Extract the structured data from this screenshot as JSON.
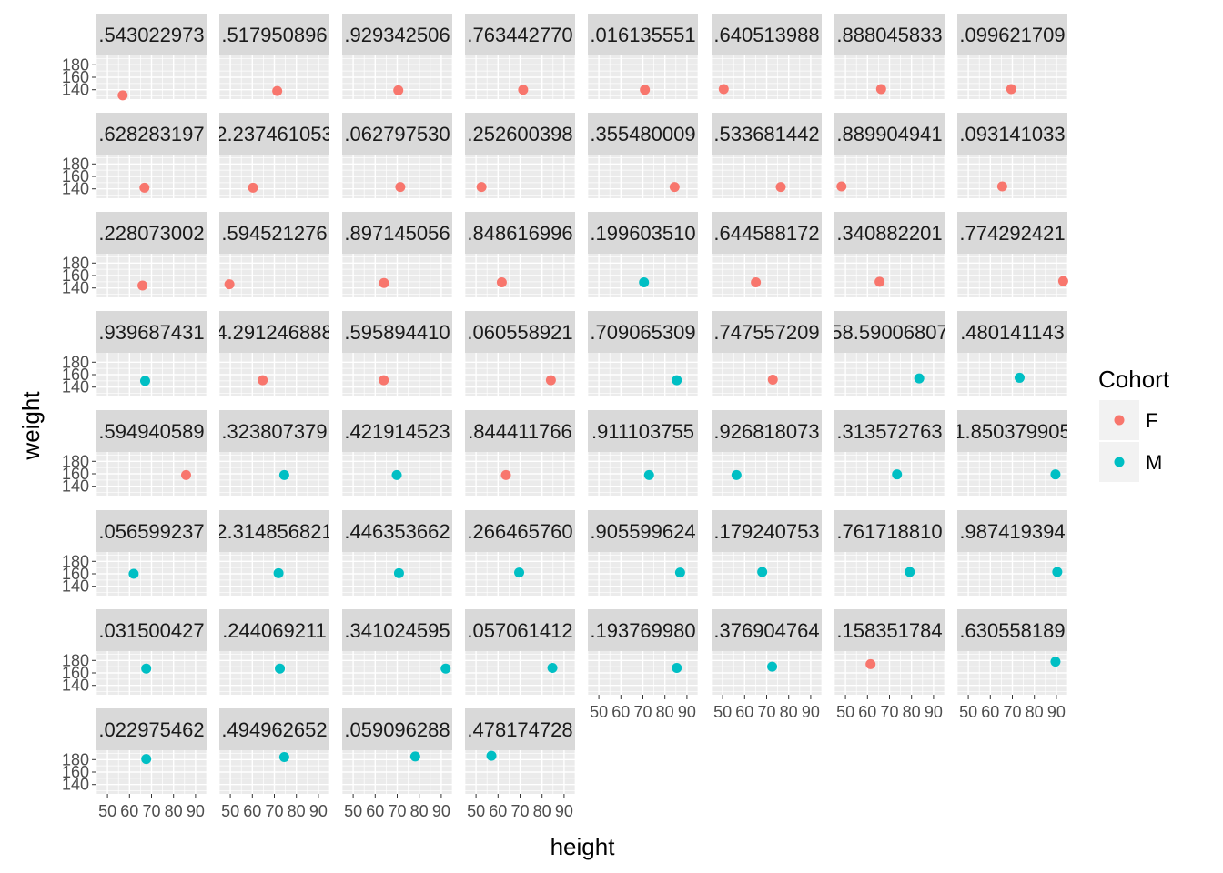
{
  "chart_data": {
    "type": "scatter",
    "x_label": "height",
    "y_label": "weight",
    "xlim": [
      45,
      95
    ],
    "ylim": [
      125,
      195
    ],
    "x_ticks": [
      50,
      60,
      70,
      80,
      90
    ],
    "y_ticks": [
      140,
      160,
      180
    ],
    "grid": true,
    "legend": {
      "title": "Cohort",
      "position": "right",
      "entries": [
        {
          "label": "F",
          "color": "#F8766D"
        },
        {
          "label": "M",
          "color": "#00BFC4"
        }
      ]
    },
    "facets": [
      {
        "label": ".543022973",
        "x": 56.9,
        "y": 131,
        "cohort": "F"
      },
      {
        "label": ".517950896",
        "x": 71.3,
        "y": 138,
        "cohort": "F"
      },
      {
        "label": ".929342506",
        "x": 70.5,
        "y": 139,
        "cohort": "F"
      },
      {
        "label": ".763442770",
        "x": 71.4,
        "y": 140,
        "cohort": "F"
      },
      {
        "label": ".016135551",
        "x": 70.9,
        "y": 140,
        "cohort": "F"
      },
      {
        "label": ".640513988",
        "x": 50.5,
        "y": 141,
        "cohort": "F"
      },
      {
        "label": ".888045833",
        "x": 66.2,
        "y": 141,
        "cohort": "F"
      },
      {
        "label": ".099621709",
        "x": 69.5,
        "y": 141,
        "cohort": "F"
      },
      {
        "label": ".628283197",
        "x": 66.8,
        "y": 142,
        "cohort": "F"
      },
      {
        "label": "2.237461053",
        "x": 60.3,
        "y": 142,
        "cohort": "F"
      },
      {
        "label": ".062797530",
        "x": 71.4,
        "y": 143,
        "cohort": "F"
      },
      {
        "label": ".252600398",
        "x": 52.5,
        "y": 143,
        "cohort": "F"
      },
      {
        "label": ".355480009",
        "x": 84.4,
        "y": 143,
        "cohort": "F"
      },
      {
        "label": ".533681442",
        "x": 76.4,
        "y": 143,
        "cohort": "F"
      },
      {
        "label": ".889904941",
        "x": 48.2,
        "y": 144,
        "cohort": "F"
      },
      {
        "label": ".093141033",
        "x": 65.4,
        "y": 144,
        "cohort": "F"
      },
      {
        "label": ".228073002",
        "x": 65.9,
        "y": 144,
        "cohort": "F"
      },
      {
        "label": ".594521276",
        "x": 49.6,
        "y": 146,
        "cohort": "F"
      },
      {
        "label": ".897145056",
        "x": 64.0,
        "y": 148,
        "cohort": "F"
      },
      {
        "label": ".848616996",
        "x": 61.7,
        "y": 149,
        "cohort": "F"
      },
      {
        "label": ".199603510",
        "x": 70.5,
        "y": 149,
        "cohort": "M"
      },
      {
        "label": ".644588172",
        "x": 65.1,
        "y": 149,
        "cohort": "F"
      },
      {
        "label": ".340882201",
        "x": 65.5,
        "y": 150,
        "cohort": "F"
      },
      {
        "label": ".774292421",
        "x": 93.1,
        "y": 151,
        "cohort": "F"
      },
      {
        "label": ".939687431",
        "x": 67.1,
        "y": 150,
        "cohort": "M"
      },
      {
        "label": "4.291246888",
        "x": 64.7,
        "y": 151,
        "cohort": "F"
      },
      {
        "label": ".595894410",
        "x": 63.9,
        "y": 151,
        "cohort": "F"
      },
      {
        "label": ".060558921",
        "x": 84.0,
        "y": 151,
        "cohort": "F"
      },
      {
        "label": ".709065309",
        "x": 85.4,
        "y": 151,
        "cohort": "M"
      },
      {
        "label": ".747557209",
        "x": 72.8,
        "y": 152,
        "cohort": "F"
      },
      {
        "label": "58.59006807",
        "x": 83.5,
        "y": 154,
        "cohort": "M"
      },
      {
        "label": ".480141143",
        "x": 73.3,
        "y": 155,
        "cohort": "M"
      },
      {
        "label": ".594940589",
        "x": 85.7,
        "y": 158,
        "cohort": "F"
      },
      {
        "label": ".323807379",
        "x": 74.5,
        "y": 158,
        "cohort": "M"
      },
      {
        "label": ".421914523",
        "x": 69.8,
        "y": 158,
        "cohort": "M"
      },
      {
        "label": ".844411766",
        "x": 63.6,
        "y": 158,
        "cohort": "F"
      },
      {
        "label": ".911103755",
        "x": 72.8,
        "y": 158,
        "cohort": "M"
      },
      {
        "label": ".926818073",
        "x": 56.3,
        "y": 158,
        "cohort": "M"
      },
      {
        "label": ".313572763",
        "x": 73.4,
        "y": 159,
        "cohort": "M"
      },
      {
        "label": "1.850379905",
        "x": 89.6,
        "y": 159,
        "cohort": "M"
      },
      {
        "label": ".056599237",
        "x": 61.9,
        "y": 160,
        "cohort": "M"
      },
      {
        "label": "2.314856821",
        "x": 71.9,
        "y": 161,
        "cohort": "M"
      },
      {
        "label": ".446353662",
        "x": 70.8,
        "y": 161,
        "cohort": "M"
      },
      {
        "label": ".266465760",
        "x": 69.6,
        "y": 162,
        "cohort": "M"
      },
      {
        "label": ".905599624",
        "x": 86.9,
        "y": 162,
        "cohort": "M"
      },
      {
        "label": ".179240753",
        "x": 68.0,
        "y": 163,
        "cohort": "M"
      },
      {
        "label": ".761718810",
        "x": 79.2,
        "y": 163,
        "cohort": "M"
      },
      {
        "label": ".987419394",
        "x": 90.4,
        "y": 163,
        "cohort": "M"
      },
      {
        "label": ".031500427",
        "x": 67.6,
        "y": 167,
        "cohort": "M"
      },
      {
        "label": ".244069211",
        "x": 72.5,
        "y": 167,
        "cohort": "M"
      },
      {
        "label": ".341024595",
        "x": 92.0,
        "y": 167,
        "cohort": "M"
      },
      {
        "label": ".057061412",
        "x": 84.7,
        "y": 168,
        "cohort": "M"
      },
      {
        "label": ".193769980",
        "x": 85.4,
        "y": 168,
        "cohort": "M"
      },
      {
        "label": ".376904764",
        "x": 72.5,
        "y": 170,
        "cohort": "M"
      },
      {
        "label": ".158351784",
        "x": 61.4,
        "y": 174,
        "cohort": "F"
      },
      {
        "label": ".630558189",
        "x": 89.6,
        "y": 178,
        "cohort": "M"
      },
      {
        "label": ".022975462",
        "x": 67.6,
        "y": 181,
        "cohort": "M"
      },
      {
        "label": ".494962652",
        "x": 74.5,
        "y": 184,
        "cohort": "M"
      },
      {
        "label": ".059096288",
        "x": 78.2,
        "y": 185,
        "cohort": "M"
      },
      {
        "label": ".478174728",
        "x": 57.0,
        "y": 186,
        "cohort": "M"
      }
    ]
  }
}
